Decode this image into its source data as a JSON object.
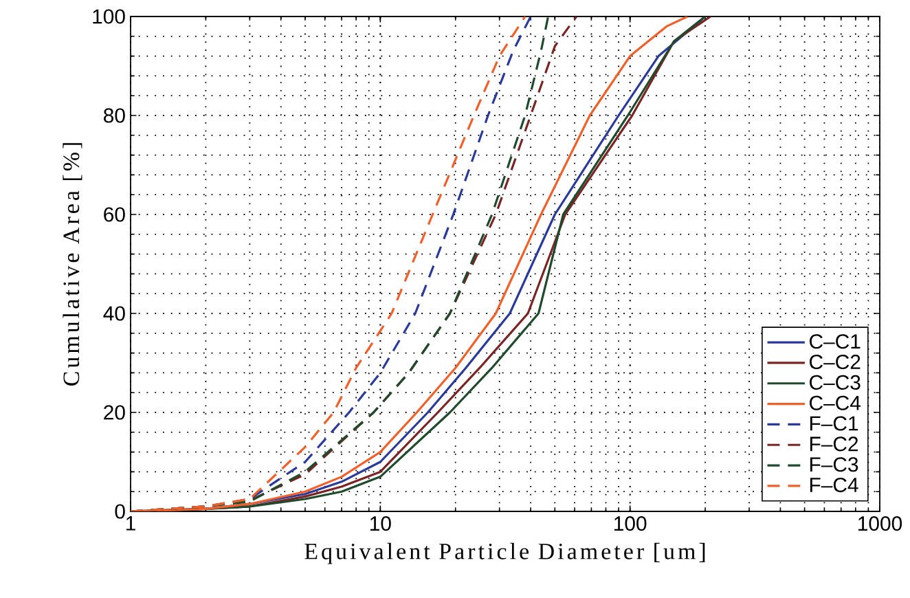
{
  "chart_data": {
    "type": "line",
    "xlabel": "Equivalent Particle Diameter [um]",
    "ylabel": "Cumulative Area [%]",
    "log": "x",
    "xlim": [
      1,
      1000
    ],
    "ylim": [
      0,
      100
    ],
    "xticks": [
      1,
      10,
      100,
      1000
    ],
    "yticks": [
      0,
      20,
      40,
      60,
      80,
      100
    ],
    "grid": true,
    "legend": "bottom right",
    "marker": "none",
    "series": [
      {
        "name": "C–C1",
        "color": "#2a3a9a",
        "line_style": "solid",
        "x": [
          1,
          2,
          3,
          5,
          7,
          10,
          15.5,
          22,
          33,
          50,
          90,
          130,
          180,
          200
        ],
        "values": [
          0,
          0.5,
          1.5,
          3.5,
          6,
          10,
          20,
          29,
          40,
          60,
          80,
          92,
          98,
          100
        ]
      },
      {
        "name": "C–C2",
        "color": "#7a2424",
        "line_style": "solid",
        "x": [
          1,
          2,
          3,
          5,
          7,
          10,
          17,
          25,
          39,
          55,
          102,
          150,
          210
        ],
        "values": [
          0,
          0.5,
          1,
          3,
          5,
          8,
          20,
          29,
          40,
          60,
          80,
          95,
          100
        ]
      },
      {
        "name": "C–C3",
        "color": "#1f4a2c",
        "line_style": "solid",
        "x": [
          1,
          2,
          3,
          5,
          7,
          10,
          19,
          28,
          43,
          54,
          98,
          150,
          200
        ],
        "values": [
          0,
          0.5,
          1,
          2.5,
          4,
          7,
          20,
          29,
          40,
          60,
          80,
          95,
          100
        ]
      },
      {
        "name": "C–C4",
        "color": "#f0602a",
        "line_style": "solid",
        "x": [
          1,
          2,
          3,
          5,
          7,
          10,
          14,
          20,
          29,
          44,
          69,
          100,
          140,
          170
        ],
        "values": [
          0,
          0.5,
          1.5,
          4,
          7,
          12,
          20,
          29,
          40,
          60,
          80,
          92,
          98,
          100
        ]
      },
      {
        "name": "F–C1",
        "color": "#2a3a9a",
        "line_style": "dashed",
        "x": [
          1,
          2,
          3,
          5,
          7.5,
          10,
          13.8,
          19.6,
          27,
          34,
          40
        ],
        "values": [
          0,
          1,
          2.5,
          10,
          20,
          28,
          40,
          60,
          80,
          93,
          100
        ]
      },
      {
        "name": "F–C2",
        "color": "#7a2424",
        "line_style": "dashed",
        "x": [
          1,
          2,
          3,
          5,
          9.4,
          13,
          19,
          29,
          40,
          50,
          61
        ],
        "values": [
          0,
          1,
          2.2,
          7.5,
          20,
          28,
          40,
          60,
          80,
          94,
          100
        ]
      },
      {
        "name": "F–C3",
        "color": "#1f4a2c",
        "line_style": "dashed",
        "x": [
          1,
          2,
          3,
          5,
          9.4,
          13,
          19,
          28,
          38,
          44,
          47
        ],
        "values": [
          0,
          1,
          2,
          8,
          20,
          28,
          40,
          60,
          80,
          93,
          100
        ]
      },
      {
        "name": "F–C4",
        "color": "#f0602a",
        "line_style": "dashed",
        "x": [
          1,
          2,
          3,
          5,
          6.5,
          8,
          11.1,
          16.2,
          23.7,
          30,
          38
        ],
        "values": [
          0,
          1,
          2.5,
          13,
          20,
          29,
          40,
          60,
          80,
          92,
          100
        ]
      }
    ]
  }
}
